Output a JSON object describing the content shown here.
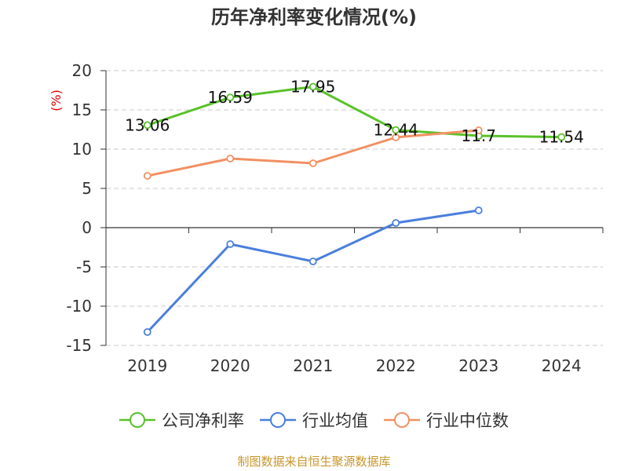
{
  "title": "历年净利率变化情况(%)",
  "source": "制图数据来自恒生聚源数据库",
  "chart_data": {
    "type": "line",
    "title": "历年净利率变化情况(%)",
    "ylabel": "(%)",
    "xlabel": "",
    "categories": [
      "2019",
      "2020",
      "2021",
      "2022",
      "2023",
      "2024"
    ],
    "ylim": [
      -15,
      20
    ],
    "yticks": [
      20,
      15,
      10,
      5,
      0,
      -5,
      -10,
      -15
    ],
    "ytick_labels": [
      "20",
      "15",
      "10",
      "5",
      "0",
      "-5",
      "-10",
      "-15"
    ],
    "grid": true,
    "legend_position": "bottom",
    "series": [
      {
        "name": "公司净利率",
        "color": "#5ac12a",
        "values": [
          13.06,
          16.59,
          17.95,
          12.44,
          11.7,
          11.54
        ],
        "labels": [
          "13.06",
          "16.59",
          "17.95",
          "12.44",
          "11.7",
          "11.54"
        ]
      },
      {
        "name": "行业均值",
        "color": "#4a7fdc",
        "values": [
          -13.3,
          -2.1,
          -4.3,
          0.6,
          2.2,
          null
        ]
      },
      {
        "name": "行业中位数",
        "color": "#f29062",
        "values": [
          6.6,
          8.8,
          8.2,
          11.5,
          12.4,
          null
        ]
      }
    ]
  }
}
